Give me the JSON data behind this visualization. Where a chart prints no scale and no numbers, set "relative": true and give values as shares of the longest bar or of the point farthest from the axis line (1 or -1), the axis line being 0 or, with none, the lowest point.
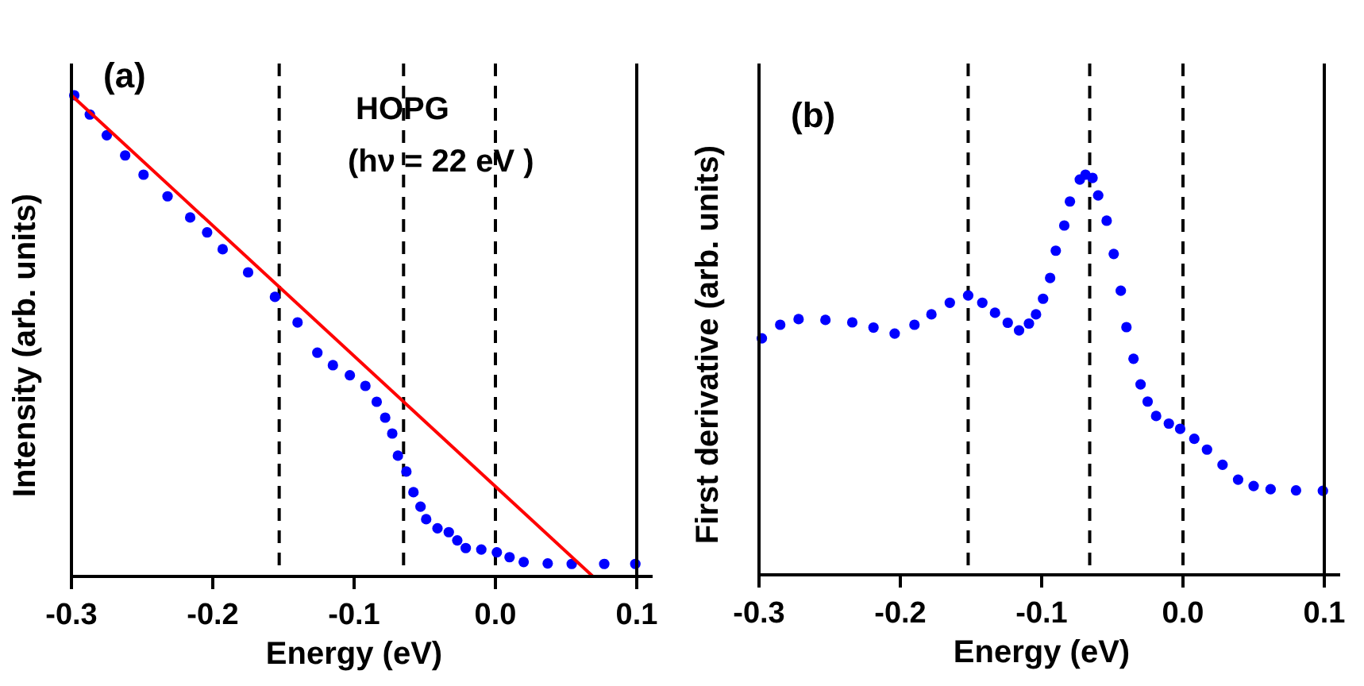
{
  "chart_data": [
    {
      "type": "scatter",
      "xlabel": "Energy (eV)",
      "ylabel": "Intensity (arb. units)",
      "relative": true,
      "tick_labels": "x",
      "xlim": [
        -0.3,
        0.1
      ],
      "xticks": [
        -0.3,
        -0.2,
        -0.1,
        {
          "value": 0,
          "label": "0.0"
        },
        0.1
      ],
      "annotations": [
        "(a)",
        "HOPG",
        "(hν = 22 eV )"
      ],
      "ref_lines": [
        {
          "axis": "x",
          "value": -0.153,
          "color": "#000000",
          "line_style": "dashed"
        },
        {
          "axis": "x",
          "value": -0.065,
          "color": "#000000",
          "line_style": "dashed"
        },
        {
          "axis": "x",
          "value": 0,
          "color": "#000000",
          "line_style": "dashed"
        }
      ],
      "series": [
        {
          "color": "#0000ff",
          "marker": "circle",
          "x": [
            -0.298,
            -0.287,
            -0.275,
            -0.262,
            -0.249,
            -0.232,
            -0.216,
            -0.204,
            -0.193,
            -0.175,
            -0.156,
            -0.14,
            -0.126,
            -0.115,
            -0.103,
            -0.092,
            -0.084,
            -0.078,
            -0.073,
            -0.069,
            -0.063,
            -0.058,
            -0.053,
            -0.049,
            -0.041,
            -0.033,
            -0.027,
            -0.021,
            -0.01,
            0.001,
            0.01,
            0.02,
            0.037,
            0.054,
            0.077,
            0.099
          ],
          "values": [
            1.0,
            0.96,
            0.917,
            0.875,
            0.835,
            0.79,
            0.746,
            0.715,
            0.68,
            0.632,
            0.581,
            0.528,
            0.465,
            0.439,
            0.418,
            0.396,
            0.363,
            0.33,
            0.297,
            0.251,
            0.218,
            0.175,
            0.145,
            0.119,
            0.1,
            0.092,
            0.075,
            0.059,
            0.056,
            0.05,
            0.04,
            0.03,
            0.027,
            0.026,
            0.026,
            0.026
          ]
        },
        {
          "type": "line",
          "color": "#ff0000",
          "marker": "none",
          "x": [
            -0.3,
            0.069
          ],
          "values": [
            1.0,
            0.0
          ]
        }
      ]
    },
    {
      "type": "scatter",
      "xlabel": "Energy (eV)",
      "ylabel": "First derivative (arb. units)",
      "relative": true,
      "tick_labels": "x",
      "xlim": [
        -0.3,
        0.1
      ],
      "xticks": [
        -0.3,
        -0.2,
        -0.1,
        {
          "value": 0,
          "label": "0.0"
        },
        0.1
      ],
      "annotations": [
        "(b)"
      ],
      "ref_lines": [
        {
          "axis": "x",
          "value": -0.152,
          "color": "#000000",
          "line_style": "dashed"
        },
        {
          "axis": "x",
          "value": -0.066,
          "color": "#000000",
          "line_style": "dashed"
        },
        {
          "axis": "x",
          "value": 0,
          "color": "#000000",
          "line_style": "dashed"
        }
      ],
      "series": [
        {
          "color": "#0000ff",
          "marker": "circle",
          "x": [
            -0.298,
            -0.285,
            -0.272,
            -0.253,
            -0.234,
            -0.219,
            -0.204,
            -0.19,
            -0.178,
            -0.165,
            -0.152,
            -0.142,
            -0.133,
            -0.124,
            -0.116,
            -0.109,
            -0.104,
            -0.099,
            -0.094,
            -0.09,
            -0.084,
            -0.08,
            -0.073,
            -0.069,
            -0.064,
            -0.06,
            -0.054,
            -0.049,
            -0.044,
            -0.04,
            -0.035,
            -0.03,
            -0.025,
            -0.019,
            -0.01,
            -0.002,
            0.008,
            0.017,
            0.028,
            0.039,
            0.05,
            0.062,
            0.08,
            0.099
          ],
          "values": [
            0.591,
            0.625,
            0.639,
            0.637,
            0.631,
            0.618,
            0.603,
            0.625,
            0.651,
            0.68,
            0.698,
            0.68,
            0.655,
            0.63,
            0.611,
            0.628,
            0.651,
            0.69,
            0.742,
            0.81,
            0.873,
            0.933,
            0.988,
            1.0,
            0.992,
            0.948,
            0.885,
            0.802,
            0.71,
            0.619,
            0.54,
            0.476,
            0.433,
            0.397,
            0.378,
            0.365,
            0.34,
            0.313,
            0.275,
            0.238,
            0.222,
            0.214,
            0.211,
            0.21
          ]
        }
      ]
    }
  ]
}
